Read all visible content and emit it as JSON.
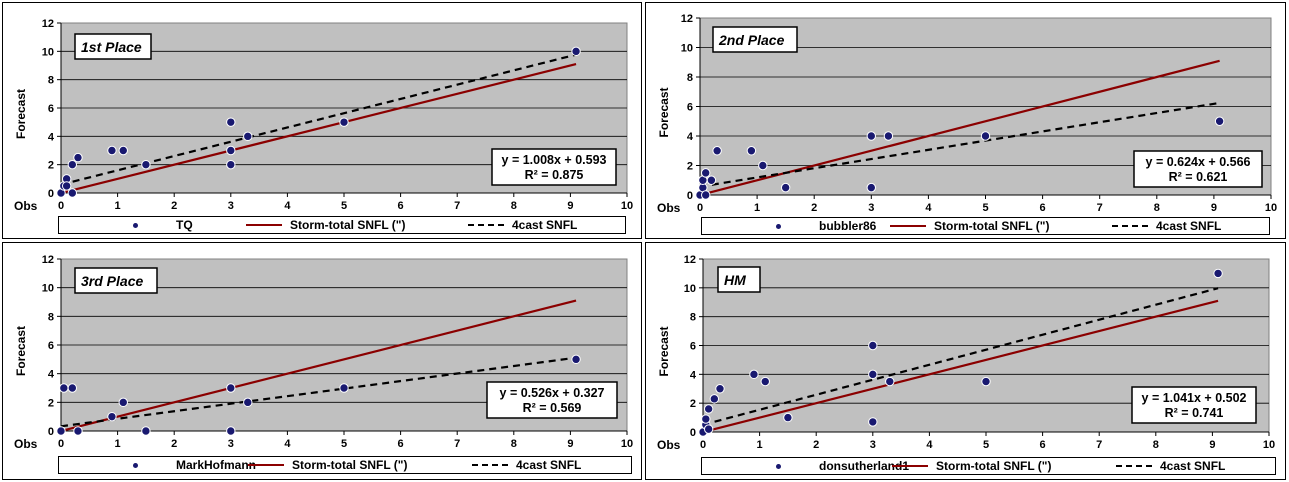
{
  "legend_labels": {
    "trend_line": "Storm-total SNFL (\")",
    "forecast_line": "4cast SNFL"
  },
  "colors": {
    "plot_bg": "#c0c0c0",
    "points": "#191970",
    "trend_line": "#8b0000",
    "forecast_line": "#000000"
  },
  "chart_data": [
    {
      "type": "scatter",
      "title": "1st Place",
      "forecaster": "TQ",
      "xlabel": "Obs",
      "ylabel": "Forecast",
      "xlim": [
        0,
        10
      ],
      "ylim": [
        0,
        12
      ],
      "xticks": [
        "0",
        "1",
        "2",
        "3",
        "4",
        "5",
        "6",
        "7",
        "8",
        "9",
        "10"
      ],
      "yticks": [
        "0",
        "2",
        "4",
        "6",
        "8",
        "10",
        "12"
      ],
      "points": [
        [
          0,
          0
        ],
        [
          0.05,
          0.5
        ],
        [
          0.1,
          1
        ],
        [
          0.1,
          0.5
        ],
        [
          0.2,
          0
        ],
        [
          0.2,
          2
        ],
        [
          0.3,
          2.5
        ],
        [
          0.9,
          3
        ],
        [
          1.1,
          3
        ],
        [
          1.5,
          2
        ],
        [
          3,
          5
        ],
        [
          3,
          3
        ],
        [
          3,
          2
        ],
        [
          3.3,
          4
        ],
        [
          5,
          5
        ],
        [
          9.1,
          10
        ]
      ],
      "trend_eq": "y = 1.008x + 0.593",
      "r2": "R² = 0.875",
      "fit": {
        "slope": 1.008,
        "intercept": 0.593
      },
      "reference": {
        "slope": 1,
        "intercept": 0
      },
      "grid": true
    },
    {
      "type": "scatter",
      "title": "2nd Place",
      "forecaster": "bubbler86",
      "xlabel": "Obs",
      "ylabel": "Forecast",
      "xlim": [
        0,
        10
      ],
      "ylim": [
        0,
        12
      ],
      "xticks": [
        "0",
        "1",
        "2",
        "3",
        "4",
        "5",
        "6",
        "7",
        "8",
        "9",
        "10"
      ],
      "yticks": [
        "0",
        "2",
        "4",
        "6",
        "8",
        "10",
        "12"
      ],
      "points": [
        [
          0,
          0
        ],
        [
          0.05,
          0.5
        ],
        [
          0.05,
          1
        ],
        [
          0.1,
          1.5
        ],
        [
          0.1,
          0
        ],
        [
          0.2,
          1
        ],
        [
          0.3,
          3
        ],
        [
          0.9,
          3
        ],
        [
          1.1,
          2
        ],
        [
          1.5,
          0.5
        ],
        [
          3,
          4
        ],
        [
          3,
          0.5
        ],
        [
          3.3,
          4
        ],
        [
          5,
          4
        ],
        [
          9.1,
          5
        ]
      ],
      "trend_eq": "y = 0.624x + 0.566",
      "r2": "R² = 0.621",
      "fit": {
        "slope": 0.624,
        "intercept": 0.566
      },
      "reference": {
        "slope": 1,
        "intercept": 0
      },
      "grid": true
    },
    {
      "type": "scatter",
      "title": "3rd Place",
      "forecaster": "MarkHofmann",
      "xlabel": "Obs",
      "ylabel": "Forecast",
      "xlim": [
        0,
        10
      ],
      "ylim": [
        0,
        12
      ],
      "xticks": [
        "0",
        "1",
        "2",
        "3",
        "4",
        "5",
        "6",
        "7",
        "8",
        "9",
        "10"
      ],
      "yticks": [
        "0",
        "2",
        "4",
        "6",
        "8",
        "10",
        "12"
      ],
      "points": [
        [
          0,
          0
        ],
        [
          0.05,
          3
        ],
        [
          0.2,
          3
        ],
        [
          0.3,
          0
        ],
        [
          0.9,
          1
        ],
        [
          1.1,
          2
        ],
        [
          1.5,
          0
        ],
        [
          3,
          3
        ],
        [
          3,
          0
        ],
        [
          3.3,
          2
        ],
        [
          5,
          3
        ],
        [
          9.1,
          5
        ]
      ],
      "trend_eq": "y = 0.526x + 0.327",
      "r2": "R² = 0.569",
      "fit": {
        "slope": 0.526,
        "intercept": 0.327
      },
      "reference": {
        "slope": 1,
        "intercept": 0
      },
      "grid": true
    },
    {
      "type": "scatter",
      "title": "HM",
      "forecaster": "donsutherland1",
      "xlabel": "Obs",
      "ylabel": "Forecast",
      "xlim": [
        0,
        10
      ],
      "ylim": [
        0,
        12
      ],
      "xticks": [
        "0",
        "1",
        "2",
        "3",
        "4",
        "5",
        "6",
        "7",
        "8",
        "9",
        "10"
      ],
      "yticks": [
        "0",
        "2",
        "4",
        "6",
        "8",
        "10",
        "12"
      ],
      "points": [
        [
          0,
          0
        ],
        [
          0.05,
          0.5
        ],
        [
          0.05,
          0.9
        ],
        [
          0.1,
          1.6
        ],
        [
          0.1,
          0.2
        ],
        [
          0.2,
          2.3
        ],
        [
          0.3,
          3
        ],
        [
          0.9,
          4
        ],
        [
          1.1,
          3.5
        ],
        [
          1.5,
          1
        ],
        [
          3,
          6
        ],
        [
          3,
          4
        ],
        [
          3,
          0.7
        ],
        [
          3.3,
          3.5
        ],
        [
          5,
          3.5
        ],
        [
          9.1,
          11
        ]
      ],
      "trend_eq": "y = 1.041x + 0.502",
      "r2": "R² = 0.741",
      "fit": {
        "slope": 1.041,
        "intercept": 0.502
      },
      "reference": {
        "slope": 1,
        "intercept": 0
      },
      "grid": true
    }
  ]
}
